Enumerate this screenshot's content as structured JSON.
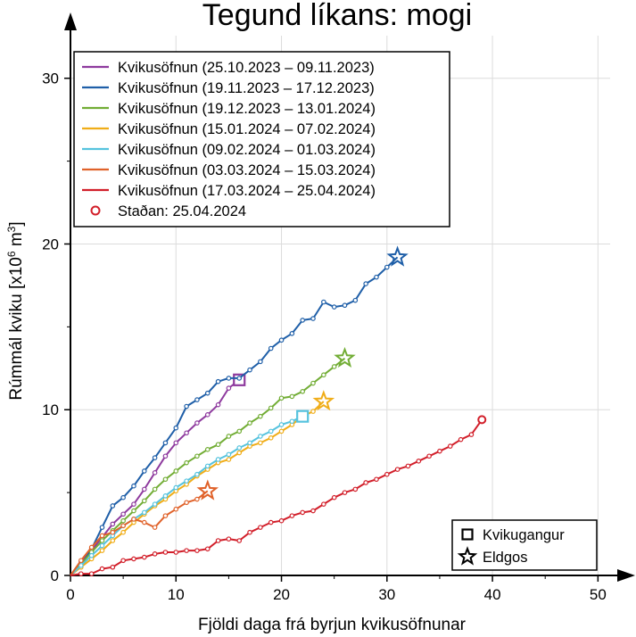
{
  "chart_data": {
    "type": "line",
    "title": "Tegund líkans: mogi",
    "xlabel": "Fjöldi daga frá byrjun kvikusöfnunar",
    "ylabel_main": "Rúmmál kviku [x10",
    "ylabel_exp": "6",
    "ylabel_unit": " m",
    "ylabel_unit_exp": "3",
    "ylabel_close": "]",
    "xlim": [
      0,
      52
    ],
    "ylim": [
      0,
      33
    ],
    "x_ticks": [
      0,
      10,
      20,
      30,
      40,
      50
    ],
    "y_ticks": [
      0,
      10,
      20,
      30
    ],
    "grid": true,
    "legend_position": "top-left",
    "series": [
      {
        "name": "Kvikusöfnun (25.10.2023 – 09.11.2023)",
        "color": "#8e3a9e",
        "end_marker": "square",
        "points": [
          [
            0,
            0
          ],
          [
            1,
            0.8
          ],
          [
            2,
            1.5
          ],
          [
            3,
            2.3
          ],
          [
            4,
            3.1
          ],
          [
            5,
            3.7
          ],
          [
            6,
            4.3
          ],
          [
            7,
            5.2
          ],
          [
            8,
            6.2
          ],
          [
            9,
            7.2
          ],
          [
            10,
            8.0
          ],
          [
            11,
            8.6
          ],
          [
            12,
            9.2
          ],
          [
            13,
            9.7
          ],
          [
            14,
            10.3
          ],
          [
            15,
            11.3
          ],
          [
            16,
            11.8
          ]
        ]
      },
      {
        "name": "Kvikusöfnun (19.11.2023 – 17.12.2023)",
        "color": "#1f5fa8",
        "end_marker": "star",
        "points": [
          [
            0,
            0
          ],
          [
            1,
            0.6
          ],
          [
            2,
            1.6
          ],
          [
            3,
            2.9
          ],
          [
            4,
            4.2
          ],
          [
            5,
            4.7
          ],
          [
            6,
            5.4
          ],
          [
            7,
            6.3
          ],
          [
            8,
            7.1
          ],
          [
            9,
            8.0
          ],
          [
            10,
            8.9
          ],
          [
            11,
            10.2
          ],
          [
            12,
            10.6
          ],
          [
            13,
            11.0
          ],
          [
            14,
            11.7
          ],
          [
            15,
            11.9
          ],
          [
            16,
            11.9
          ],
          [
            17,
            12.4
          ],
          [
            18,
            12.9
          ],
          [
            19,
            13.7
          ],
          [
            20,
            14.2
          ],
          [
            21,
            14.6
          ],
          [
            22,
            15.4
          ],
          [
            23,
            15.5
          ],
          [
            24,
            16.5
          ],
          [
            25,
            16.2
          ],
          [
            26,
            16.3
          ],
          [
            27,
            16.6
          ],
          [
            28,
            17.6
          ],
          [
            29,
            18.0
          ],
          [
            30,
            18.6
          ],
          [
            31,
            19.2
          ]
        ]
      },
      {
        "name": "Kvikusöfnun (19.12.2023 – 13.01.2024)",
        "color": "#72ad35",
        "end_marker": "star",
        "points": [
          [
            0,
            0
          ],
          [
            1,
            0.7
          ],
          [
            2,
            1.4
          ],
          [
            3,
            2.1
          ],
          [
            4,
            2.7
          ],
          [
            5,
            3.3
          ],
          [
            6,
            3.9
          ],
          [
            7,
            4.5
          ],
          [
            8,
            5.2
          ],
          [
            9,
            5.8
          ],
          [
            10,
            6.3
          ],
          [
            11,
            6.8
          ],
          [
            12,
            7.2
          ],
          [
            13,
            7.6
          ],
          [
            14,
            7.9
          ],
          [
            15,
            8.4
          ],
          [
            16,
            8.7
          ],
          [
            17,
            9.2
          ],
          [
            18,
            9.6
          ],
          [
            19,
            10.1
          ],
          [
            20,
            10.7
          ],
          [
            21,
            10.8
          ],
          [
            22,
            11.1
          ],
          [
            23,
            11.6
          ],
          [
            24,
            12.1
          ],
          [
            25,
            12.6
          ],
          [
            26,
            13.1
          ]
        ]
      },
      {
        "name": "Kvikusöfnun (15.01.2024 – 07.02.2024)",
        "color": "#f0ad18",
        "end_marker": "star",
        "points": [
          [
            0,
            0
          ],
          [
            1,
            0.5
          ],
          [
            2,
            1.0
          ],
          [
            3,
            1.5
          ],
          [
            4,
            2.1
          ],
          [
            5,
            2.6
          ],
          [
            6,
            3.2
          ],
          [
            7,
            3.7
          ],
          [
            8,
            4.2
          ],
          [
            9,
            4.6
          ],
          [
            10,
            5.1
          ],
          [
            11,
            5.5
          ],
          [
            12,
            6.0
          ],
          [
            13,
            6.4
          ],
          [
            14,
            6.8
          ],
          [
            15,
            7.0
          ],
          [
            16,
            7.4
          ],
          [
            17,
            7.8
          ],
          [
            18,
            8.0
          ],
          [
            19,
            8.3
          ],
          [
            20,
            8.7
          ],
          [
            21,
            9.1
          ],
          [
            22,
            9.6
          ],
          [
            23,
            9.9
          ],
          [
            24,
            10.5
          ]
        ]
      },
      {
        "name": "Kvikusöfnun (09.02.2024 – 01.03.2024)",
        "color": "#56c3de",
        "end_marker": "square",
        "points": [
          [
            0,
            0
          ],
          [
            1,
            0.6
          ],
          [
            2,
            1.2
          ],
          [
            3,
            1.8
          ],
          [
            4,
            2.4
          ],
          [
            5,
            3.0
          ],
          [
            6,
            3.4
          ],
          [
            7,
            3.8
          ],
          [
            8,
            4.3
          ],
          [
            9,
            4.8
          ],
          [
            10,
            5.3
          ],
          [
            11,
            5.7
          ],
          [
            12,
            6.1
          ],
          [
            13,
            6.6
          ],
          [
            14,
            7.0
          ],
          [
            15,
            7.3
          ],
          [
            16,
            7.7
          ],
          [
            17,
            8.0
          ],
          [
            18,
            8.4
          ],
          [
            19,
            8.7
          ],
          [
            20,
            9.1
          ],
          [
            21,
            9.3
          ],
          [
            22,
            9.6
          ]
        ]
      },
      {
        "name": "Kvikusöfnun (03.03.2024 – 15.03.2024)",
        "color": "#e0622a",
        "end_marker": "star",
        "points": [
          [
            0,
            0
          ],
          [
            1,
            0.9
          ],
          [
            2,
            1.7
          ],
          [
            3,
            2.4
          ],
          [
            4,
            2.6
          ],
          [
            5,
            3.0
          ],
          [
            6,
            3.4
          ],
          [
            7,
            3.2
          ],
          [
            8,
            2.9
          ],
          [
            9,
            3.6
          ],
          [
            10,
            4.0
          ],
          [
            11,
            4.4
          ],
          [
            12,
            4.6
          ],
          [
            13,
            5.1
          ]
        ]
      },
      {
        "name": "Kvikusöfnun (17.03.2024 – 25.04.2024)",
        "color": "#d21f2a",
        "end_marker": "circle",
        "points": [
          [
            0,
            0
          ],
          [
            1,
            0.1
          ],
          [
            2,
            0.1
          ],
          [
            3,
            0.4
          ],
          [
            4,
            0.5
          ],
          [
            5,
            0.9
          ],
          [
            6,
            1.0
          ],
          [
            7,
            1.1
          ],
          [
            8,
            1.3
          ],
          [
            9,
            1.4
          ],
          [
            10,
            1.4
          ],
          [
            11,
            1.5
          ],
          [
            12,
            1.5
          ],
          [
            13,
            1.6
          ],
          [
            14,
            2.1
          ],
          [
            15,
            2.2
          ],
          [
            16,
            2.1
          ],
          [
            17,
            2.6
          ],
          [
            18,
            2.9
          ],
          [
            19,
            3.2
          ],
          [
            20,
            3.3
          ],
          [
            21,
            3.6
          ],
          [
            22,
            3.8
          ],
          [
            23,
            3.9
          ],
          [
            24,
            4.3
          ],
          [
            25,
            4.7
          ],
          [
            26,
            5.0
          ],
          [
            27,
            5.2
          ],
          [
            28,
            5.6
          ],
          [
            29,
            5.8
          ],
          [
            30,
            6.1
          ],
          [
            31,
            6.4
          ],
          [
            32,
            6.6
          ],
          [
            33,
            6.9
          ],
          [
            34,
            7.2
          ],
          [
            35,
            7.5
          ],
          [
            36,
            7.8
          ],
          [
            37,
            8.2
          ],
          [
            38,
            8.5
          ],
          [
            39,
            9.4
          ]
        ]
      }
    ],
    "legend_extra": "Staðan: 25.04.2024",
    "symbol_legend": [
      {
        "symbol": "square",
        "label": "Kvikugangur"
      },
      {
        "symbol": "star",
        "label": "Eldgos"
      }
    ]
  }
}
